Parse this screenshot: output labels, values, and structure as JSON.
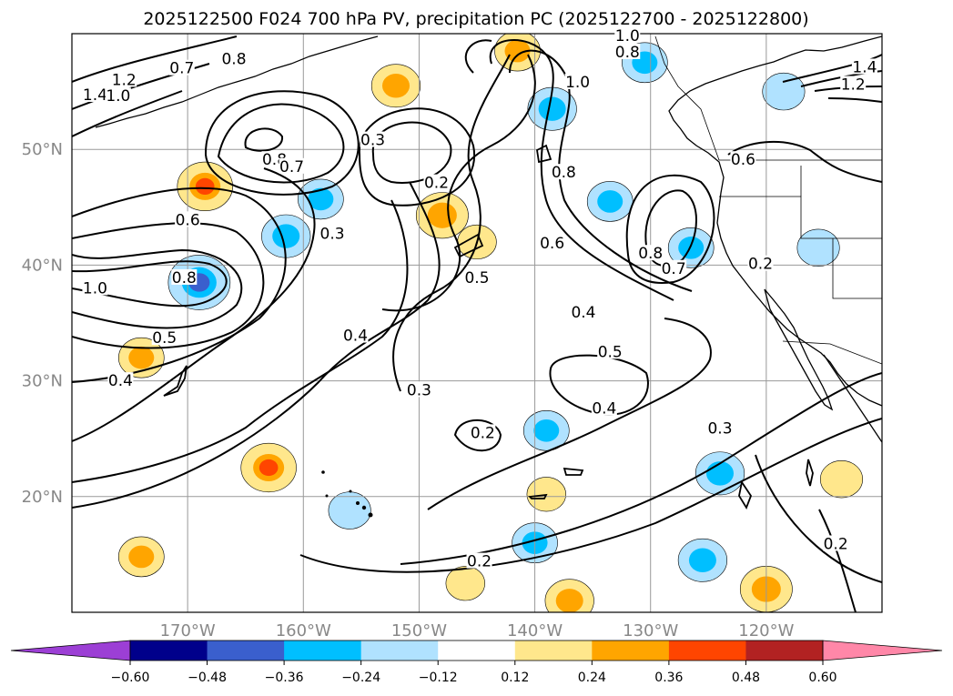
{
  "chart_data": {
    "type": "contour-map",
    "title": "2025122500 F024 700 hPa PV, precipitation PC (2025122700 - 2025122800)",
    "x_axis": {
      "range_deg": [
        -180,
        -110
      ],
      "ticks": [
        {
          "value": -170,
          "label": "170°W"
        },
        {
          "value": -160,
          "label": "160°W"
        },
        {
          "value": -150,
          "label": "150°W"
        },
        {
          "value": -140,
          "label": "140°W"
        },
        {
          "value": -130,
          "label": "130°W"
        },
        {
          "value": -120,
          "label": "120°W"
        }
      ]
    },
    "y_axis": {
      "range_deg": [
        10,
        60
      ],
      "ticks": [
        {
          "value": 20,
          "label": "20°N"
        },
        {
          "value": 30,
          "label": "30°N"
        },
        {
          "value": 40,
          "label": "40°N"
        },
        {
          "value": 50,
          "label": "50°N"
        }
      ]
    },
    "grid": true,
    "pv_contour_labels": [
      {
        "text": "1.0",
        "lon": -178.0,
        "lat": 37.8
      },
      {
        "text": "0.8",
        "lon": -170.3,
        "lat": 38.7
      },
      {
        "text": "0.6",
        "lon": -170.0,
        "lat": 43.7
      },
      {
        "text": "0.5",
        "lon": -172.0,
        "lat": 33.5
      },
      {
        "text": "0.4",
        "lon": -175.8,
        "lat": 29.8
      },
      {
        "text": "1.4",
        "lon": -178.0,
        "lat": 54.5
      },
      {
        "text": "1.2",
        "lon": -175.5,
        "lat": 55.8
      },
      {
        "text": "1.0",
        "lon": -176.0,
        "lat": 54.4
      },
      {
        "text": "0.8",
        "lon": -166.0,
        "lat": 57.6
      },
      {
        "text": "0.7",
        "lon": -170.5,
        "lat": 56.8
      },
      {
        "text": "0.8",
        "lon": -162.5,
        "lat": 48.9
      },
      {
        "text": "0.7",
        "lon": -161.0,
        "lat": 48.3
      },
      {
        "text": "0.3",
        "lon": -157.5,
        "lat": 42.5
      },
      {
        "text": "0.3",
        "lon": -154.0,
        "lat": 50.6
      },
      {
        "text": "0.2",
        "lon": -148.5,
        "lat": 46.9
      },
      {
        "text": "0.5",
        "lon": -145.0,
        "lat": 38.7
      },
      {
        "text": "0.4",
        "lon": -155.5,
        "lat": 33.7
      },
      {
        "text": "0.3",
        "lon": -150.0,
        "lat": 29.0
      },
      {
        "text": "0.2",
        "lon": -144.5,
        "lat": 25.3
      },
      {
        "text": "0.2",
        "lon": -144.8,
        "lat": 14.2
      },
      {
        "text": "1.0",
        "lon": -136.3,
        "lat": 55.6
      },
      {
        "text": "0.8",
        "lon": -137.5,
        "lat": 47.8
      },
      {
        "text": "0.6",
        "lon": -138.5,
        "lat": 41.7
      },
      {
        "text": "0.4",
        "lon": -135.8,
        "lat": 35.7
      },
      {
        "text": "0.5",
        "lon": -133.5,
        "lat": 32.3
      },
      {
        "text": "0.4",
        "lon": -134.0,
        "lat": 27.4
      },
      {
        "text": "0.8",
        "lon": -130.0,
        "lat": 40.8
      },
      {
        "text": "0.7",
        "lon": -128.0,
        "lat": 39.5
      },
      {
        "text": "0.3",
        "lon": -124.0,
        "lat": 25.7
      },
      {
        "text": "0.2",
        "lon": -120.5,
        "lat": 39.9
      },
      {
        "text": "0.6",
        "lon": -122.0,
        "lat": 48.9
      },
      {
        "text": "0.2",
        "lon": -114.0,
        "lat": 15.7
      },
      {
        "text": "1.0",
        "lon": -132.0,
        "lat": 59.6
      },
      {
        "text": "0.8",
        "lon": -132.0,
        "lat": 58.2
      },
      {
        "text": "1.4",
        "lon": -111.5,
        "lat": 56.9
      },
      {
        "text": "1.2",
        "lon": -112.5,
        "lat": 55.4
      }
    ],
    "precip_pc_patches": [
      {
        "lon": -169.0,
        "lat": 38.5,
        "value": -0.5
      },
      {
        "lon": -168.5,
        "lat": 46.8,
        "value": 0.4
      },
      {
        "lon": -161.5,
        "lat": 42.5,
        "value": -0.3
      },
      {
        "lon": -158.5,
        "lat": 45.7,
        "value": -0.25
      },
      {
        "lon": -152.0,
        "lat": 55.5,
        "value": 0.3
      },
      {
        "lon": -148.0,
        "lat": 44.3,
        "value": 0.35
      },
      {
        "lon": -145.0,
        "lat": 42.0,
        "value": 0.15
      },
      {
        "lon": -141.5,
        "lat": 58.5,
        "value": 0.25
      },
      {
        "lon": -138.5,
        "lat": 53.5,
        "value": -0.3
      },
      {
        "lon": -133.5,
        "lat": 45.5,
        "value": -0.25
      },
      {
        "lon": -130.5,
        "lat": 57.5,
        "value": -0.25
      },
      {
        "lon": -126.5,
        "lat": 41.5,
        "value": -0.25
      },
      {
        "lon": -118.5,
        "lat": 55.0,
        "value": -0.2
      },
      {
        "lon": -115.5,
        "lat": 41.5,
        "value": -0.2
      },
      {
        "lon": -163.0,
        "lat": 22.5,
        "value": 0.4
      },
      {
        "lon": -174.0,
        "lat": 32.0,
        "value": 0.25
      },
      {
        "lon": -174.0,
        "lat": 14.8,
        "value": 0.25
      },
      {
        "lon": -139.0,
        "lat": 25.7,
        "value": -0.25
      },
      {
        "lon": -140.0,
        "lat": 16.0,
        "value": -0.25
      },
      {
        "lon": -139.0,
        "lat": 20.2,
        "value": 0.15
      },
      {
        "lon": -124.0,
        "lat": 22.0,
        "value": -0.3
      },
      {
        "lon": -125.5,
        "lat": 14.5,
        "value": -0.3
      },
      {
        "lon": -120.0,
        "lat": 12.0,
        "value": 0.35
      },
      {
        "lon": -113.5,
        "lat": 21.5,
        "value": 0.2
      },
      {
        "lon": -156.0,
        "lat": 18.8,
        "value": -0.2
      },
      {
        "lon": -146.0,
        "lat": 12.5,
        "value": 0.15
      },
      {
        "lon": -137.0,
        "lat": 11.0,
        "value": 0.3
      }
    ],
    "colorbar": {
      "extend": "both",
      "boundaries": [
        -0.72,
        -0.6,
        -0.48,
        -0.36,
        -0.24,
        -0.12,
        0.12,
        0.24,
        0.36,
        0.48,
        0.6,
        0.72
      ],
      "colors": [
        "#9c3fd5",
        "#00008b",
        "#3a5fcd",
        "#00bfff",
        "#b0e2ff",
        "#ffffff",
        "#ffe78c",
        "#ffa500",
        "#ff4500",
        "#b22222",
        "#ff87a8"
      ],
      "tick_labels": [
        "−0.60",
        "−0.48",
        "−0.36",
        "−0.24",
        "−0.12",
        "0.12",
        "0.24",
        "0.36",
        "0.48",
        "0.60"
      ]
    }
  }
}
